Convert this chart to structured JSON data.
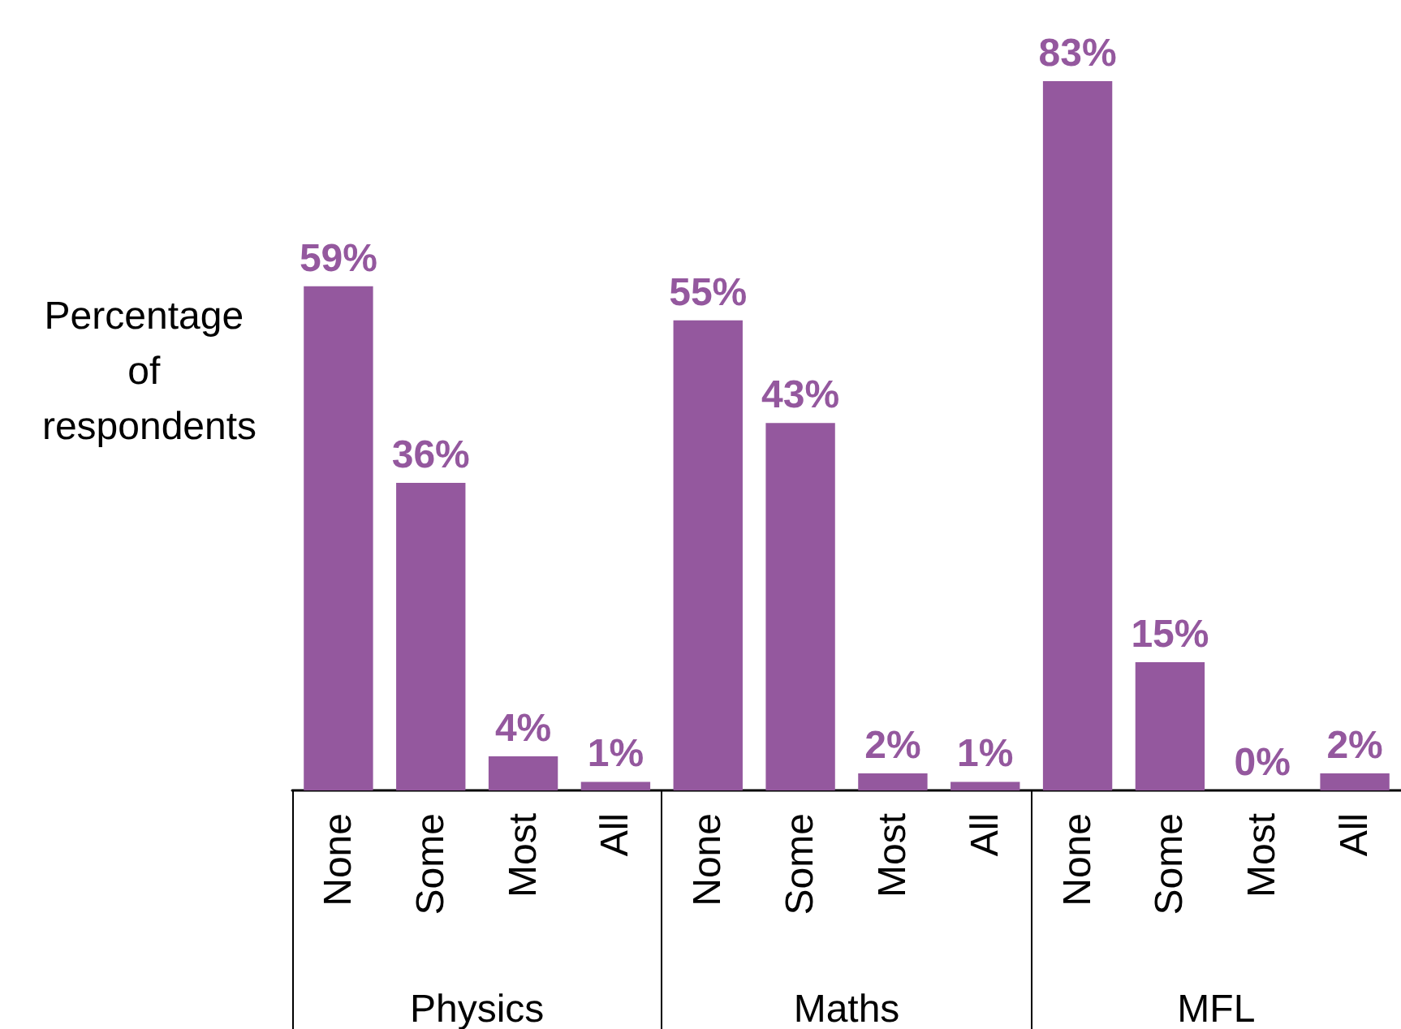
{
  "chart_data": {
    "type": "bar",
    "ylabel": "Percentage of respondents",
    "categories": [
      "None",
      "Some",
      "Most",
      "All",
      "None",
      "Some",
      "Most",
      "All",
      "None",
      "Some",
      "Most",
      "All"
    ],
    "values": [
      59,
      36,
      4,
      1,
      55,
      43,
      2,
      1,
      83,
      15,
      0,
      2
    ],
    "value_labels": [
      "59%",
      "36%",
      "4%",
      "1%",
      "55%",
      "43%",
      "2%",
      "1%",
      "83%",
      "15%",
      "0%",
      "2%"
    ],
    "annotations": [
      "Physics",
      "Maths",
      "MFL"
    ],
    "color": "#94589e",
    "grid": false
  }
}
